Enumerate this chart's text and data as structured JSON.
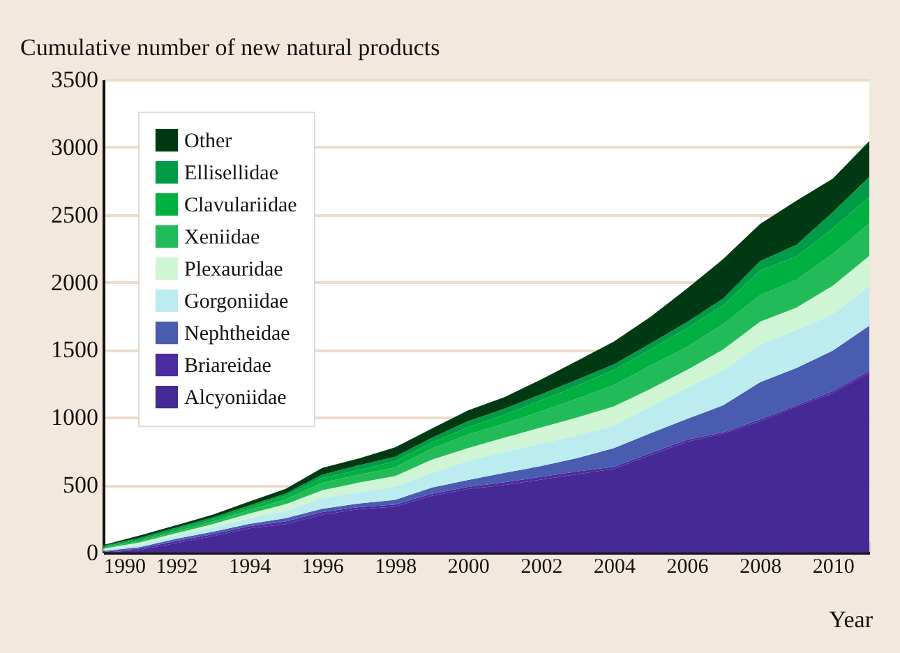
{
  "chart_data": {
    "type": "area",
    "stacked": true,
    "ylabel": "Cumulative number of new natural products",
    "xlabel": "Year",
    "x": [
      1990,
      1991,
      1992,
      1993,
      1994,
      1995,
      1996,
      1997,
      1998,
      1999,
      2000,
      2001,
      2002,
      2003,
      2004,
      2005,
      2006,
      2007,
      2008,
      2009,
      2010,
      2011
    ],
    "xlim": [
      1990,
      2011
    ],
    "xticks": [
      1990,
      {
        "value": 1991,
        "label": null
      },
      1992,
      {
        "value": 1993,
        "label": null
      },
      1994,
      {
        "value": 1995,
        "label": null
      },
      1996,
      {
        "value": 1997,
        "label": null
      },
      1998,
      {
        "value": 1999,
        "label": null
      },
      2000,
      {
        "value": 2001,
        "label": null
      },
      2002,
      {
        "value": 2003,
        "label": null
      },
      2004,
      {
        "value": 2005,
        "label": null
      },
      2006,
      {
        "value": 2007,
        "label": null
      },
      2008,
      {
        "value": 2009,
        "label": null
      },
      2010,
      {
        "value": 2011,
        "label": null
      }
    ],
    "ylim": [
      0,
      3500
    ],
    "yticks": [
      0,
      500,
      1000,
      1500,
      2000,
      2500,
      3000,
      3500
    ],
    "grid": "y",
    "legend": "top left",
    "series": [
      {
        "name": "Alcyoniidae",
        "color": "#452a96",
        "values": [
          0,
          20,
          70,
          120,
          180,
          210,
          280,
          320,
          340,
          420,
          470,
          500,
          540,
          580,
          620,
          720,
          820,
          880,
          970,
          1080,
          1180,
          1330
        ]
      },
      {
        "name": "Briareidae",
        "color": "#4a2ba0",
        "values": [
          5,
          10,
          15,
          15,
          15,
          20,
          20,
          15,
          15,
          15,
          15,
          20,
          20,
          20,
          15,
          15,
          15,
          10,
          15,
          10,
          15,
          15
        ]
      },
      {
        "name": "Nephtheidae",
        "color": "#4a5caf",
        "values": [
          7,
          10,
          17,
          18,
          17,
          24,
          24,
          28,
          35,
          45,
          52,
          70,
          80,
          100,
          138,
          148,
          154,
          200,
          275,
          275,
          299,
          334
        ]
      },
      {
        "name": "Gorgoniidae",
        "color": "#bcebf0",
        "values": [
          7,
          17,
          24,
          31,
          41,
          55,
          79,
          86,
          96,
          110,
          143,
          155,
          165,
          170,
          165,
          196,
          231,
          258,
          276,
          282,
          269,
          293
        ]
      },
      {
        "name": "Plexauridae",
        "color": "#d0f5d4",
        "values": [
          10,
          18,
          17,
          27,
          35,
          48,
          58,
          68,
          79,
          96,
          93,
          105,
          120,
          130,
          144,
          131,
          131,
          155,
          172,
          165,
          212,
          223
        ]
      },
      {
        "name": "Xeniidae",
        "color": "#22bb5a",
        "values": [
          7,
          10,
          14,
          17,
          27,
          35,
          55,
          59,
          65,
          83,
          99,
          105,
          120,
          140,
          158,
          172,
          171,
          188,
          196,
          206,
          234,
          241
        ]
      },
      {
        "name": "Clavulariidae",
        "color": "#00b040",
        "values": [
          7,
          10,
          14,
          17,
          17,
          27,
          35,
          34,
          45,
          44,
          55,
          65,
          80,
          95,
          111,
          120,
          138,
          138,
          182,
          172,
          189,
          196
        ]
      },
      {
        "name": "Ellisellidae",
        "color": "#009c48",
        "values": [
          7,
          14,
          14,
          14,
          17,
          17,
          24,
          35,
          34,
          35,
          45,
          45,
          45,
          45,
          41,
          45,
          45,
          51,
          69,
          87,
          121,
          148
        ]
      },
      {
        "name": "Other",
        "color": "#003a12",
        "values": [
          6,
          17,
          17,
          21,
          28,
          35,
          51,
          51,
          69,
          68,
          80,
          85,
          110,
          140,
          170,
          196,
          247,
          293,
          275,
          326,
          248,
          265
        ]
      }
    ]
  }
}
